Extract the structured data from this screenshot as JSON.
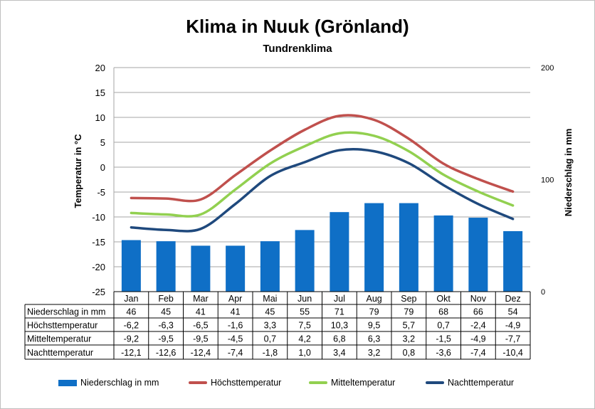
{
  "title": "Klima in Nuuk (Grönland)",
  "subtitle": "Tundrenklima",
  "chart_data": {
    "type": "bar",
    "combo": "bar+line",
    "title": "Klima in Nuuk (Grönland)",
    "subtitle": "Tundrenklima",
    "categories": [
      "Jan",
      "Feb",
      "Mar",
      "Apr",
      "Mai",
      "Jun",
      "Jul",
      "Aug",
      "Sep",
      "Okt",
      "Nov",
      "Dez"
    ],
    "ylabel": "Temperatur in °C",
    "ylabel_right": "Niederschlag in mm",
    "ylim": [
      -25,
      20
    ],
    "yticks": [
      20,
      15,
      10,
      5,
      0,
      -5,
      -10,
      -15,
      -20,
      -25
    ],
    "ylim_right": [
      0,
      200
    ],
    "yticks_right": [
      200,
      100,
      0
    ],
    "grid": true,
    "legend": "bottom",
    "series": [
      {
        "name": "Niederschlag in mm",
        "kind": "bar",
        "axis": "right",
        "color": "#0f6fc6",
        "values": [
          46,
          45,
          41,
          41,
          45,
          55,
          71,
          79,
          79,
          68,
          66,
          54
        ],
        "labels": [
          "46",
          "45",
          "41",
          "41",
          "45",
          "55",
          "71",
          "79",
          "79",
          "68",
          "66",
          "54"
        ]
      },
      {
        "name": "Höchsttemperatur",
        "kind": "line",
        "axis": "left",
        "color": "#c0504d",
        "values": [
          -6.2,
          -6.3,
          -6.5,
          -1.6,
          3.3,
          7.5,
          10.3,
          9.5,
          5.7,
          0.7,
          -2.4,
          -4.9
        ],
        "labels": [
          "-6,2",
          "-6,3",
          "-6,5",
          "-1,6",
          "3,3",
          "7,5",
          "10,3",
          "9,5",
          "5,7",
          "0,7",
          "-2,4",
          "-4,9"
        ]
      },
      {
        "name": "Mitteltemperatur",
        "kind": "line",
        "axis": "left",
        "color": "#92d050",
        "values": [
          -9.2,
          -9.5,
          -9.5,
          -4.5,
          0.7,
          4.2,
          6.8,
          6.3,
          3.2,
          -1.5,
          -4.9,
          -7.7
        ],
        "labels": [
          "-9,2",
          "-9,5",
          "-9,5",
          "-4,5",
          "0,7",
          "4,2",
          "6,8",
          "6,3",
          "3,2",
          "-1,5",
          "-4,9",
          "-7,7"
        ]
      },
      {
        "name": "Nachttemperatur",
        "kind": "line",
        "axis": "left",
        "color": "#1f497d",
        "values": [
          -12.1,
          -12.6,
          -12.4,
          -7.4,
          -1.8,
          1.0,
          3.4,
          3.2,
          0.8,
          -3.6,
          -7.4,
          -10.4
        ],
        "labels": [
          "-12,1",
          "-12,6",
          "-12,4",
          "-7,4",
          "-1,8",
          "1,0",
          "3,4",
          "3,2",
          "0,8",
          "-3,6",
          "-7,4",
          "-10,4"
        ]
      }
    ]
  }
}
